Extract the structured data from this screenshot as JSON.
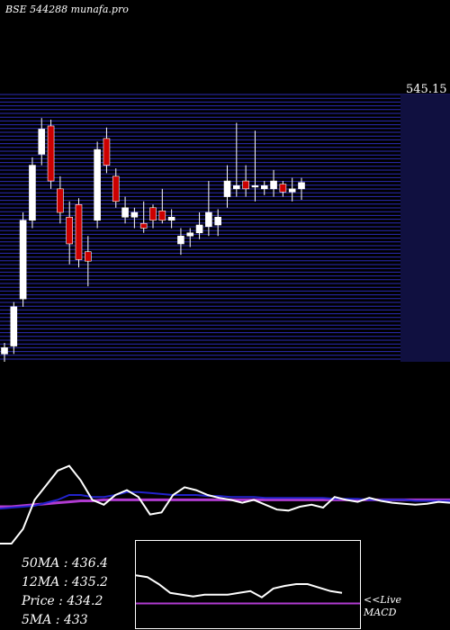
{
  "header": {
    "exchange_code": "BSE 544288",
    "site": "munafa.pro"
  },
  "colors": {
    "up": "#ffffff",
    "down": "#cc0000",
    "grid": "#2b2bb5",
    "ma_short": "#ffffff",
    "ma_long": "#b03bd0",
    "ma_mid": "#2222cc"
  },
  "chart_data": {
    "type": "candlestick",
    "price_label": "545.15",
    "ylim": [
      380,
      550
    ],
    "candles": [
      {
        "o": 385,
        "h": 392,
        "l": 380,
        "c": 389
      },
      {
        "o": 390,
        "h": 418,
        "l": 385,
        "c": 415
      },
      {
        "o": 420,
        "h": 475,
        "l": 415,
        "c": 470
      },
      {
        "o": 470,
        "h": 510,
        "l": 465,
        "c": 505
      },
      {
        "o": 512,
        "h": 535,
        "l": 505,
        "c": 528
      },
      {
        "o": 530,
        "h": 534,
        "l": 490,
        "c": 495
      },
      {
        "o": 490,
        "h": 498,
        "l": 468,
        "c": 475
      },
      {
        "o": 472,
        "h": 482,
        "l": 442,
        "c": 455
      },
      {
        "o": 480,
        "h": 484,
        "l": 440,
        "c": 445
      },
      {
        "o": 450,
        "h": 460,
        "l": 428,
        "c": 444
      },
      {
        "o": 470,
        "h": 520,
        "l": 465,
        "c": 515
      },
      {
        "o": 522,
        "h": 529,
        "l": 500,
        "c": 505
      },
      {
        "o": 498,
        "h": 503,
        "l": 478,
        "c": 482
      },
      {
        "o": 472,
        "h": 485,
        "l": 468,
        "c": 478
      },
      {
        "o": 472,
        "h": 478,
        "l": 465,
        "c": 475
      },
      {
        "o": 468,
        "h": 482,
        "l": 462,
        "c": 465
      },
      {
        "o": 478,
        "h": 480,
        "l": 465,
        "c": 470
      },
      {
        "o": 476,
        "h": 490,
        "l": 468,
        "c": 470
      },
      {
        "o": 470,
        "h": 477,
        "l": 465,
        "c": 472
      },
      {
        "o": 455,
        "h": 465,
        "l": 448,
        "c": 460
      },
      {
        "o": 460,
        "h": 465,
        "l": 453,
        "c": 462
      },
      {
        "o": 462,
        "h": 475,
        "l": 458,
        "c": 467
      },
      {
        "o": 466,
        "h": 495,
        "l": 460,
        "c": 475
      },
      {
        "o": 467,
        "h": 477,
        "l": 460,
        "c": 472
      },
      {
        "o": 485,
        "h": 505,
        "l": 478,
        "c": 495
      },
      {
        "o": 490,
        "h": 532,
        "l": 485,
        "c": 492
      },
      {
        "o": 495,
        "h": 505,
        "l": 485,
        "c": 490
      },
      {
        "o": 492,
        "h": 527,
        "l": 482,
        "c": 492
      },
      {
        "o": 490,
        "h": 495,
        "l": 486,
        "c": 492
      },
      {
        "o": 490,
        "h": 502,
        "l": 485,
        "c": 495
      },
      {
        "o": 493,
        "h": 495,
        "l": 485,
        "c": 488
      },
      {
        "o": 488,
        "h": 497,
        "l": 482,
        "c": 490
      },
      {
        "o": 490,
        "h": 497,
        "l": 483,
        "c": 494
      }
    ],
    "ma": {
      "short": [
        0,
        0,
        0.15,
        0.45,
        0.6,
        0.75,
        0.8,
        0.65,
        0.45,
        0.4,
        0.5,
        0.55,
        0.48,
        0.3,
        0.32,
        0.5,
        0.58,
        0.55,
        0.5,
        0.47,
        0.45,
        0.42,
        0.45,
        0.4,
        0.35,
        0.34,
        0.38,
        0.4,
        0.37,
        0.48,
        0.45,
        0.43,
        0.47,
        0.44,
        0.42,
        0.41,
        0.4,
        0.41,
        0.43,
        0.42
      ],
      "mid": [
        0.36,
        0.37,
        0.38,
        0.39,
        0.42,
        0.45,
        0.5,
        0.5,
        0.48,
        0.48,
        0.5,
        0.53,
        0.53,
        0.52,
        0.51,
        0.5,
        0.5,
        0.5,
        0.49,
        0.49,
        0.48,
        0.48,
        0.48,
        0.47,
        0.47,
        0.47,
        0.47,
        0.47,
        0.47,
        0.46,
        0.46,
        0.46,
        0.45,
        0.45,
        0.45,
        0.45,
        0.44,
        0.44,
        0.44,
        0.44
      ],
      "long": [
        0.38,
        0.38,
        0.39,
        0.4,
        0.41,
        0.42,
        0.43,
        0.44,
        0.44,
        0.45,
        0.45,
        0.45,
        0.45,
        0.45,
        0.45,
        0.45,
        0.45,
        0.45,
        0.45,
        0.45,
        0.45,
        0.45,
        0.45,
        0.45,
        0.45,
        0.45,
        0.45,
        0.45,
        0.45,
        0.45,
        0.45,
        0.45,
        0.45,
        0.45,
        0.45,
        0.45,
        0.45,
        0.45,
        0.45,
        0.45
      ]
    },
    "macd": {
      "line": [
        0.6,
        0.58,
        0.5,
        0.4,
        0.38,
        0.36,
        0.38,
        0.38,
        0.38,
        0.4,
        0.42,
        0.35,
        0.45,
        0.48,
        0.5,
        0.5,
        0.46,
        0.42,
        0.4
      ],
      "signal": 0.28
    }
  },
  "ma_panel": {
    "ma50": "50MA : 436.4",
    "ma12": "12MA : 435.2",
    "price": "Price   : 434.2",
    "ma5": "5MA : 433"
  },
  "live_label": {
    "line1": "<<Live",
    "line2": "MACD"
  }
}
